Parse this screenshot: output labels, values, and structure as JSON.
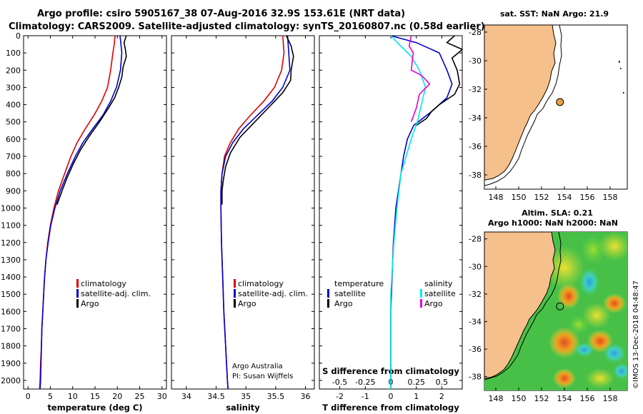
{
  "header": {
    "title_line1": "Argo profile: csiro 5905167_38 07-Aug-2016 32.9S 153.61E (NRT data)",
    "title_line2": "Climatology: CARS2009. Satellite-adjusted climatology: synTS_20160807.nc (0.58d earlier)"
  },
  "colors": {
    "climatology": "#e00000",
    "satellite": "#0000cc",
    "argo": "#000000",
    "satellite_salinity": "#00e8e8",
    "argo_salinity": "#e000e0",
    "land": "#f6c08c"
  },
  "depth_axis": {
    "ylim": [
      0,
      2050
    ],
    "ticks": [
      0,
      100,
      200,
      300,
      400,
      500,
      600,
      700,
      800,
      900,
      1000,
      1100,
      1200,
      1300,
      1400,
      1500,
      1600,
      1700,
      1800,
      1900,
      2000
    ]
  },
  "chart_data": [
    {
      "type": "line",
      "id": "temperature",
      "xlabel": "temperature (deg C)",
      "xlim": [
        -1,
        31
      ],
      "xticks": [
        0,
        5,
        10,
        15,
        20,
        25,
        30
      ],
      "legend": [
        "climatology",
        "satellite-adj. clim.",
        "Argo"
      ],
      "series": [
        {
          "name": "climatology",
          "color_key": "climatology",
          "points": [
            [
              19.5,
              0
            ],
            [
              19.3,
              50
            ],
            [
              19.0,
              100
            ],
            [
              18.5,
              200
            ],
            [
              17.8,
              300
            ],
            [
              16.5,
              380
            ],
            [
              14.8,
              460
            ],
            [
              12.8,
              540
            ],
            [
              11.0,
              620
            ],
            [
              9.6,
              700
            ],
            [
              8.2,
              800
            ],
            [
              6.8,
              900
            ],
            [
              5.8,
              1000
            ],
            [
              5.0,
              1100
            ],
            [
              4.4,
              1200
            ],
            [
              4.0,
              1300
            ],
            [
              3.7,
              1400
            ],
            [
              3.5,
              1500
            ],
            [
              3.3,
              1600
            ],
            [
              3.1,
              1700
            ],
            [
              3.0,
              1800
            ],
            [
              2.8,
              1900
            ],
            [
              2.7,
              2000
            ],
            [
              2.6,
              2050
            ]
          ]
        },
        {
          "name": "satellite-adj. clim.",
          "color_key": "satellite",
          "points": [
            [
              20.6,
              0
            ],
            [
              20.8,
              50
            ],
            [
              21.0,
              100
            ],
            [
              20.7,
              200
            ],
            [
              19.8,
              300
            ],
            [
              18.5,
              380
            ],
            [
              16.8,
              460
            ],
            [
              14.5,
              540
            ],
            [
              12.3,
              620
            ],
            [
              10.6,
              700
            ],
            [
              8.8,
              800
            ],
            [
              7.2,
              900
            ],
            [
              6.0,
              1000
            ],
            [
              5.1,
              1100
            ],
            [
              4.5,
              1200
            ],
            [
              4.0,
              1300
            ],
            [
              3.7,
              1400
            ],
            [
              3.5,
              1500
            ],
            [
              3.3,
              1600
            ],
            [
              3.1,
              1700
            ],
            [
              3.0,
              1800
            ],
            [
              2.9,
              1900
            ],
            [
              2.8,
              2000
            ],
            [
              2.7,
              2050
            ]
          ]
        },
        {
          "name": "Argo",
          "color_key": "argo",
          "points": [
            [
              22.0,
              0
            ],
            [
              21.5,
              40
            ],
            [
              21.8,
              80
            ],
            [
              22.0,
              120
            ],
            [
              21.3,
              180
            ],
            [
              21.0,
              240
            ],
            [
              20.3,
              300
            ],
            [
              19.4,
              360
            ],
            [
              18.0,
              420
            ],
            [
              16.0,
              500
            ],
            [
              13.8,
              580
            ],
            [
              11.8,
              660
            ],
            [
              10.2,
              740
            ],
            [
              8.8,
              820
            ],
            [
              7.6,
              900
            ],
            [
              6.5,
              980
            ]
          ]
        }
      ]
    },
    {
      "type": "line",
      "id": "salinity",
      "xlabel": "salinity",
      "xlim": [
        33.75,
        36.15
      ],
      "xticks": [
        34,
        34.5,
        35,
        35.5,
        36
      ],
      "legend": [
        "climatology",
        "satellite-adj. clim.",
        "Argo"
      ],
      "series": [
        {
          "name": "climatology",
          "color_key": "climatology",
          "points": [
            [
              35.62,
              0
            ],
            [
              35.64,
              100
            ],
            [
              35.6,
              200
            ],
            [
              35.48,
              300
            ],
            [
              35.3,
              380
            ],
            [
              35.08,
              460
            ],
            [
              34.88,
              540
            ],
            [
              34.74,
              620
            ],
            [
              34.64,
              700
            ],
            [
              34.6,
              800
            ],
            [
              34.58,
              900
            ],
            [
              34.58,
              1000
            ],
            [
              34.59,
              1200
            ],
            [
              34.61,
              1400
            ],
            [
              34.63,
              1600
            ],
            [
              34.66,
              1800
            ],
            [
              34.69,
              2000
            ],
            [
              34.7,
              2050
            ]
          ]
        },
        {
          "name": "satellite-adj. clim.",
          "color_key": "satellite",
          "points": [
            [
              35.7,
              0
            ],
            [
              35.72,
              100
            ],
            [
              35.74,
              200
            ],
            [
              35.62,
              300
            ],
            [
              35.44,
              380
            ],
            [
              35.2,
              460
            ],
            [
              34.96,
              540
            ],
            [
              34.78,
              620
            ],
            [
              34.66,
              700
            ],
            [
              34.6,
              800
            ],
            [
              34.58,
              900
            ],
            [
              34.58,
              1000
            ],
            [
              34.59,
              1200
            ],
            [
              34.61,
              1400
            ],
            [
              34.63,
              1600
            ],
            [
              34.66,
              1800
            ],
            [
              34.69,
              2000
            ],
            [
              34.7,
              2050
            ]
          ]
        },
        {
          "name": "Argo",
          "color_key": "argo",
          "points": [
            [
              35.68,
              0
            ],
            [
              35.76,
              60
            ],
            [
              35.8,
              120
            ],
            [
              35.76,
              200
            ],
            [
              35.75,
              260
            ],
            [
              35.62,
              330
            ],
            [
              35.4,
              410
            ],
            [
              35.15,
              500
            ],
            [
              34.9,
              590
            ],
            [
              34.74,
              680
            ],
            [
              34.66,
              760
            ],
            [
              34.62,
              840
            ],
            [
              34.6,
              900
            ],
            [
              34.6,
              980
            ]
          ]
        }
      ]
    },
    {
      "type": "line",
      "id": "difference",
      "xlabel": "T difference from climatology",
      "xlim": [
        -2.8,
        2.8
      ],
      "xticks": [
        -2,
        -1,
        0,
        1,
        2
      ],
      "top_xlabel": "S difference from climatology",
      "top_xticks": [
        "-0.5",
        "-0.25",
        "0",
        "0.25",
        "0.5"
      ],
      "top_xtick_values": [
        -0.5,
        -0.25,
        0,
        0.25,
        0.5
      ],
      "legend_left_title": "temperature",
      "legend_left": [
        "satellite",
        "Argo"
      ],
      "legend_right_title": "salinity",
      "legend_right": [
        "satellite",
        "Argo"
      ],
      "series": [
        {
          "name": "temperature satellite",
          "color_key": "satellite",
          "points": [
            [
              0.0,
              0
            ],
            [
              1.0,
              40
            ],
            [
              1.9,
              100
            ],
            [
              2.2,
              200
            ],
            [
              2.4,
              280
            ],
            [
              2.2,
              360
            ],
            [
              1.6,
              440
            ],
            [
              0.9,
              520
            ],
            [
              0.65,
              600
            ],
            [
              0.5,
              700
            ],
            [
              0.4,
              800
            ],
            [
              0.3,
              900
            ],
            [
              0.2,
              1000
            ],
            [
              0.15,
              1100
            ],
            [
              0.1,
              1200
            ],
            [
              0.05,
              1400
            ],
            [
              0.0,
              1600
            ],
            [
              0.0,
              2050
            ]
          ]
        },
        {
          "name": "temperature Argo",
          "color_key": "argo",
          "points": [
            [
              2.5,
              0
            ],
            [
              2.2,
              40
            ],
            [
              2.8,
              80
            ],
            [
              2.4,
              130
            ],
            [
              2.6,
              200
            ],
            [
              2.7,
              280
            ],
            [
              2.5,
              340
            ],
            [
              1.9,
              400
            ],
            [
              1.6,
              440
            ],
            [
              1.4,
              480
            ],
            [
              1.0,
              520
            ]
          ]
        },
        {
          "name": "salinity satellite",
          "color_key": "satellite_salinity",
          "points": [
            [
              0.0,
              0
            ],
            [
              0.08,
              50
            ],
            [
              0.2,
              120
            ],
            [
              0.28,
              200
            ],
            [
              0.34,
              300
            ],
            [
              0.3,
              400
            ],
            [
              0.26,
              500
            ],
            [
              0.2,
              600
            ],
            [
              0.15,
              700
            ],
            [
              0.1,
              800
            ],
            [
              0.08,
              900
            ],
            [
              0.06,
              1000
            ],
            [
              0.03,
              1200
            ],
            [
              0.0,
              1500
            ],
            [
              0.0,
              2050
            ]
          ]
        },
        {
          "name": "salinity Argo",
          "color_key": "argo_salinity",
          "points": [
            [
              0.2,
              0
            ],
            [
              0.18,
              60
            ],
            [
              0.22,
              100
            ],
            [
              0.2,
              200
            ],
            [
              0.3,
              230
            ],
            [
              0.38,
              280
            ],
            [
              0.28,
              340
            ],
            [
              0.25,
              420
            ],
            [
              0.2,
              500
            ]
          ]
        }
      ],
      "footer_note": [
        "Argo Australia",
        "PI: Susan Wijffels"
      ]
    }
  ],
  "map_top": {
    "title": "sat. SST: NaN  Argo: 21.9",
    "xticks": [
      148,
      150,
      152,
      154,
      156,
      158
    ],
    "yticks": [
      -28,
      -30,
      -32,
      -34,
      -36,
      -38
    ],
    "lon_range": [
      147,
      159.5
    ],
    "lat_range": [
      -39,
      -27.5
    ],
    "float_lon": 153.61,
    "float_lat": -32.9
  },
  "map_bottom": {
    "title_line1": "Altim. SLA: 0.21",
    "title_line2": "Argo h1000: NaN h2000: NaN",
    "xticks": [
      148,
      150,
      152,
      154,
      156,
      158
    ],
    "yticks": [
      -28,
      -30,
      -32,
      -34,
      -36,
      -38
    ],
    "lon_range": [
      147,
      159.5
    ],
    "lat_range": [
      -39,
      -27.5
    ],
    "float_lon": 153.61,
    "float_lat": -32.9,
    "watermark": "©IMOS 13-Dec-2018 04:48:47"
  }
}
